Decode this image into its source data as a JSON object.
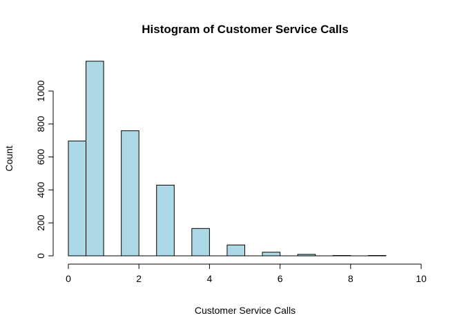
{
  "chart_data": {
    "type": "bar",
    "title": "Histogram of Customer Service Calls",
    "xlabel": "Customer Service Calls",
    "ylabel": "Count",
    "bar_color": "#add8e6",
    "xlim": [
      0,
      10
    ],
    "ylim": [
      0,
      1180
    ],
    "x_ticks": [
      0,
      2,
      4,
      6,
      8,
      10
    ],
    "y_ticks": [
      0,
      200,
      400,
      600,
      800,
      1000
    ],
    "grid": false,
    "legend": "none",
    "bins": [
      {
        "x0": 0.0,
        "x1": 0.5,
        "count": 697
      },
      {
        "x0": 0.5,
        "x1": 1.0,
        "count": 1181
      },
      {
        "x0": 1.0,
        "x1": 1.5,
        "count": 0
      },
      {
        "x0": 1.5,
        "x1": 2.0,
        "count": 759
      },
      {
        "x0": 2.0,
        "x1": 2.5,
        "count": 0
      },
      {
        "x0": 2.5,
        "x1": 3.0,
        "count": 429
      },
      {
        "x0": 3.0,
        "x1": 3.5,
        "count": 0
      },
      {
        "x0": 3.5,
        "x1": 4.0,
        "count": 166
      },
      {
        "x0": 4.0,
        "x1": 4.5,
        "count": 0
      },
      {
        "x0": 4.5,
        "x1": 5.0,
        "count": 66
      },
      {
        "x0": 5.0,
        "x1": 5.5,
        "count": 0
      },
      {
        "x0": 5.5,
        "x1": 6.0,
        "count": 22
      },
      {
        "x0": 6.0,
        "x1": 6.5,
        "count": 0
      },
      {
        "x0": 6.5,
        "x1": 7.0,
        "count": 9
      },
      {
        "x0": 7.0,
        "x1": 7.5,
        "count": 0
      },
      {
        "x0": 7.5,
        "x1": 8.0,
        "count": 2
      },
      {
        "x0": 8.0,
        "x1": 8.5,
        "count": 0
      },
      {
        "x0": 8.5,
        "x1": 9.0,
        "count": 2
      }
    ]
  }
}
